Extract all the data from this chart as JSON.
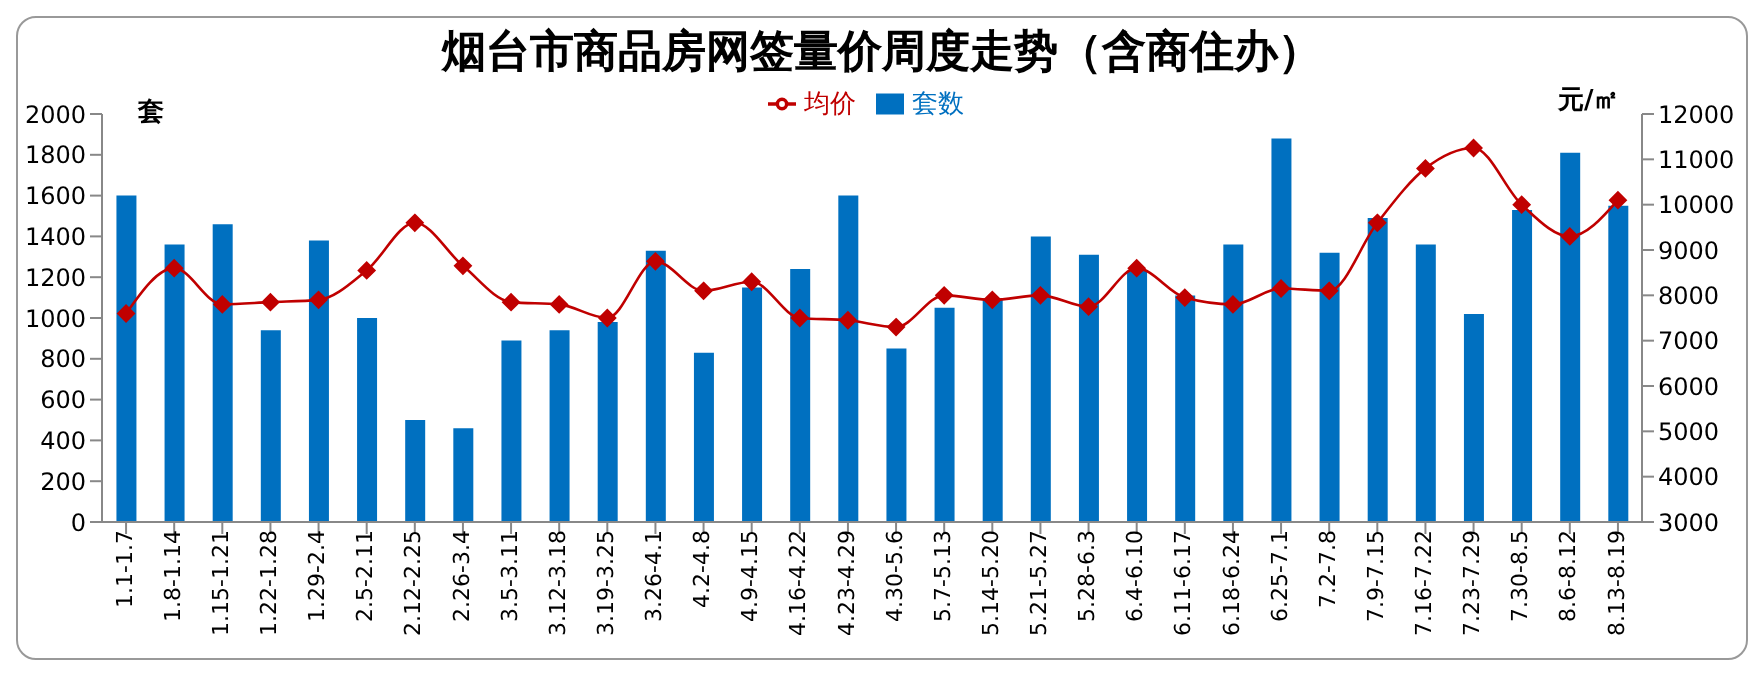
{
  "chart_data": {
    "type": "bar",
    "title": "烟台市商品房网签量价周度走势（含商住办）",
    "ylabel": "套",
    "y2label": "元/㎡",
    "categories": [
      "1.1-1.7",
      "1.8-1.14",
      "1.15-1.21",
      "1.22-1.28",
      "1.29-2.4",
      "2.5-2.11",
      "2.12-2.25",
      "2.26-3.4",
      "3.5-3.11",
      "3.12-3.18",
      "3.19-3.25",
      "3.26-4.1",
      "4.2-4.8",
      "4.9-4.15",
      "4.16-4.22",
      "4.23-4.29",
      "4.30-5.6",
      "5.7-5.13",
      "5.14-5.20",
      "5.21-5.27",
      "5.28-6.3",
      "6.4-6.10",
      "6.11-6.17",
      "6.18-6.24",
      "6.25-7.1",
      "7.2-7.8",
      "7.9-7.15",
      "7.16-7.22",
      "7.23-7.29",
      "7.30-8.5",
      "8.6-8.12",
      "8.13-8.19"
    ],
    "series": [
      {
        "name": "套数",
        "color": "#0070c0",
        "values": [
          1600,
          1360,
          1460,
          940,
          1380,
          1000,
          500,
          460,
          890,
          940,
          980,
          1330,
          830,
          1150,
          1240,
          1600,
          850,
          1050,
          1090,
          1400,
          1310,
          1230,
          1110,
          1360,
          1880,
          1320,
          1490,
          1360,
          1020,
          1530,
          1810,
          1550
        ]
      },
      {
        "name": "均价",
        "type": "line",
        "axis": "y2",
        "color": "#c00000",
        "values": [
          7600,
          8600,
          7800,
          7850,
          7900,
          8550,
          9600,
          8650,
          7850,
          7800,
          7500,
          8750,
          8100,
          8300,
          7500,
          7450,
          7300,
          8000,
          7900,
          8000,
          7750,
          8600,
          7950,
          7800,
          8150,
          8100,
          9600,
          10800,
          11250,
          10000,
          9300,
          10100
        ]
      }
    ],
    "ylim": [
      0,
      2000
    ],
    "yticks": [
      0,
      200,
      400,
      600,
      800,
      1000,
      1200,
      1400,
      1600,
      1800,
      2000
    ],
    "y2lim": [
      3000,
      12000
    ],
    "y2ticks": [
      3000,
      4000,
      5000,
      6000,
      7000,
      8000,
      9000,
      10000,
      11000,
      12000
    ],
    "grid": false,
    "legend": "top",
    "marker": "diamond",
    "line_style": "solid"
  }
}
